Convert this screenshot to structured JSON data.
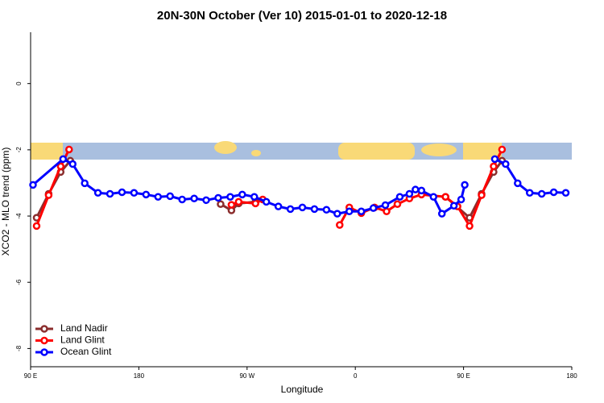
{
  "chart_data": {
    "type": "line",
    "title": "20N-30N October (Ver 10)   2015-01-01 to 2020-12-18",
    "x_label": "Longitude",
    "y_label": "XCO2 - MLO trend (ppm)",
    "xlim": [
      90,
      540
    ],
    "xticks": [
      {
        "value": 90,
        "label": "90 E"
      },
      180,
      {
        "value": 270,
        "label": "90 W"
      },
      {
        "value": 360,
        "label": "0"
      },
      {
        "value": 450,
        "label": "90 E"
      },
      {
        "value": 540,
        "label": "180"
      }
    ],
    "ylim": [
      -8.55,
      1.55
    ],
    "yticks": [
      0,
      -2,
      -4,
      -6,
      -8
    ],
    "legend": "bottom-left",
    "series": [
      {
        "name": "Land Nadir",
        "color": "#8b2e2e",
        "x": [
          95,
          105,
          115,
          123,
          null,
          248,
          257,
          263,
          277,
          null,
          435,
          455,
          465,
          475,
          482
        ],
        "values": [
          -4.05,
          -3.33,
          -2.67,
          -2.33,
          null,
          -3.64,
          -3.83,
          -3.62,
          -3.57,
          null,
          -3.42,
          -4.05,
          -3.33,
          -2.67,
          -2.33
        ]
      },
      {
        "name": "Land Glint",
        "color": "#ff0000",
        "x": [
          95,
          105,
          115,
          122,
          null,
          257,
          263,
          277,
          283,
          null,
          347,
          355,
          365,
          376,
          386,
          395,
          405,
          415,
          435,
          445,
          455,
          465,
          475,
          482
        ],
        "values": [
          -4.3,
          -3.37,
          -2.5,
          -1.99,
          null,
          -3.66,
          -3.57,
          -3.62,
          -3.5,
          null,
          -4.27,
          -3.74,
          -3.91,
          -3.74,
          -3.86,
          -3.64,
          -3.47,
          -3.35,
          -3.42,
          -3.71,
          -4.3,
          -3.37,
          -2.5,
          -1.99
        ]
      },
      {
        "name": "Ocean Glint",
        "color": "#0000ff",
        "x": [
          92,
          117,
          125,
          135,
          146,
          156,
          166,
          176,
          186,
          196,
          206,
          216,
          226,
          236,
          246,
          256,
          266,
          276,
          286,
          296,
          306,
          316,
          326,
          336,
          345,
          355,
          365,
          375,
          385,
          397,
          405,
          410,
          415,
          425,
          432,
          442,
          448,
          451,
          null,
          476,
          485,
          495,
          505,
          515,
          525,
          535
        ],
        "values": [
          -3.06,
          -2.28,
          -2.43,
          -3.01,
          -3.3,
          -3.33,
          -3.28,
          -3.3,
          -3.35,
          -3.42,
          -3.4,
          -3.5,
          -3.47,
          -3.52,
          -3.45,
          -3.42,
          -3.35,
          -3.42,
          -3.57,
          -3.71,
          -3.79,
          -3.74,
          -3.79,
          -3.81,
          -3.93,
          -3.86,
          -3.86,
          -3.76,
          -3.67,
          -3.42,
          -3.33,
          -3.2,
          -3.23,
          -3.42,
          -3.93,
          -3.69,
          -3.5,
          -3.06,
          null,
          -2.28,
          -2.43,
          -3.01,
          -3.3,
          -3.33,
          -3.28,
          -3.3
        ]
      }
    ]
  }
}
